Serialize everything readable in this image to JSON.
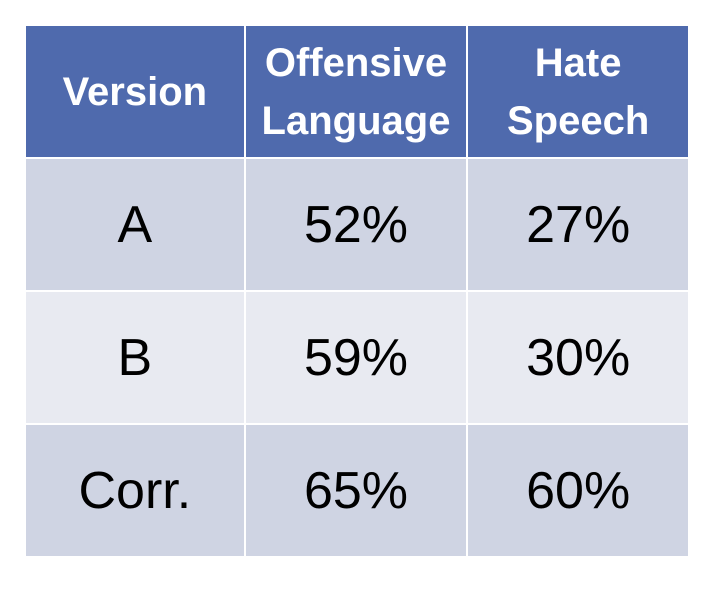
{
  "chart_data": {
    "type": "table",
    "columns": [
      {
        "lines": [
          "Version"
        ]
      },
      {
        "lines": [
          "Offensive",
          "Language"
        ]
      },
      {
        "lines": [
          "Hate",
          "Speech"
        ]
      }
    ],
    "rows": [
      [
        "A",
        "52%",
        "27%"
      ],
      [
        "B",
        "59%",
        "30%"
      ],
      [
        "Corr.",
        "65%",
        "60%"
      ]
    ],
    "header_color": "#4f6aad",
    "row_colors": [
      "#cfd4e3",
      "#e8eaf1"
    ]
  }
}
